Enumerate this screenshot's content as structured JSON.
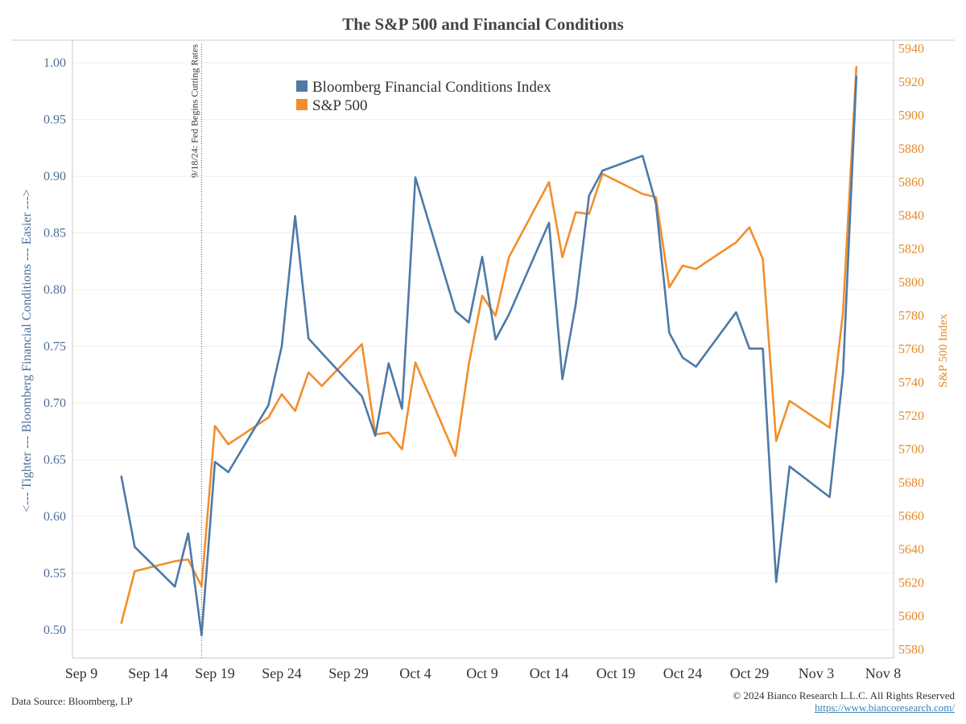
{
  "chart_data": {
    "type": "line",
    "title": "The S&P 500 and Financial Conditions",
    "y_left_label": "<--- Tighter --- Bloomberg Financial Conditions --- Easier --->",
    "y_right_label": "S&P 500 Index",
    "y_left_lim": [
      0.475,
      1.02
    ],
    "y_right_lim": [
      5575,
      5945
    ],
    "y_left_ticks": [
      "0.50",
      "0.55",
      "0.60",
      "0.65",
      "0.70",
      "0.75",
      "0.80",
      "0.85",
      "0.90",
      "0.95",
      "1.00"
    ],
    "y_right_ticks": [
      "5580",
      "5600",
      "5620",
      "5640",
      "5660",
      "5680",
      "5700",
      "5720",
      "5740",
      "5760",
      "5780",
      "5800",
      "5820",
      "5840",
      "5860",
      "5880",
      "5900",
      "5920",
      "5940"
    ],
    "x_tick_labels": [
      "Sep 9",
      "Sep 14",
      "Sep 19",
      "Sep 24",
      "Sep 29",
      "Oct 4",
      "Oct 9",
      "Oct 14",
      "Oct 19",
      "Oct 24",
      "Oct 29",
      "Nov 3",
      "Nov 8"
    ],
    "grid": true,
    "legend_position": "top-center",
    "annotation": {
      "date": "2024-09-18",
      "text": "9/18/24: Fed Begins Cutting Rates"
    },
    "series": [
      {
        "name": "Bloomberg Financial Conditions Index",
        "axis": "left",
        "color": "#4e79a7",
        "dates": [
          "2024-09-12",
          "2024-09-13",
          "2024-09-16",
          "2024-09-17",
          "2024-09-18",
          "2024-09-19",
          "2024-09-20",
          "2024-09-23",
          "2024-09-24",
          "2024-09-25",
          "2024-09-26",
          "2024-09-27",
          "2024-09-30",
          "2024-10-01",
          "2024-10-02",
          "2024-10-03",
          "2024-10-04",
          "2024-10-07",
          "2024-10-08",
          "2024-10-09",
          "2024-10-10",
          "2024-10-11",
          "2024-10-14",
          "2024-10-15",
          "2024-10-16",
          "2024-10-17",
          "2024-10-18",
          "2024-10-21",
          "2024-10-22",
          "2024-10-23",
          "2024-10-24",
          "2024-10-25",
          "2024-10-28",
          "2024-10-29",
          "2024-10-30",
          "2024-10-31",
          "2024-11-01",
          "2024-11-04",
          "2024-11-05",
          "2024-11-06"
        ],
        "values": [
          0.635,
          0.573,
          0.538,
          0.585,
          0.495,
          0.648,
          0.639,
          0.698,
          0.75,
          0.865,
          0.757,
          0.744,
          0.706,
          0.671,
          0.735,
          0.695,
          0.899,
          0.781,
          0.771,
          0.829,
          0.756,
          0.778,
          0.859,
          0.721,
          0.787,
          0.883,
          0.905,
          0.918,
          0.876,
          0.762,
          0.74,
          0.732,
          0.78,
          0.748,
          0.748,
          0.542,
          0.644,
          0.617,
          0.726,
          0.988
        ]
      },
      {
        "name": "S&P 500",
        "axis": "right",
        "color": "#f28e2b",
        "dates": [
          "2024-09-12",
          "2024-09-13",
          "2024-09-16",
          "2024-09-17",
          "2024-09-18",
          "2024-09-19",
          "2024-09-20",
          "2024-09-23",
          "2024-09-24",
          "2024-09-25",
          "2024-09-26",
          "2024-09-27",
          "2024-09-30",
          "2024-10-01",
          "2024-10-02",
          "2024-10-03",
          "2024-10-04",
          "2024-10-07",
          "2024-10-08",
          "2024-10-09",
          "2024-10-10",
          "2024-10-11",
          "2024-10-14",
          "2024-10-15",
          "2024-10-16",
          "2024-10-17",
          "2024-10-18",
          "2024-10-21",
          "2024-10-22",
          "2024-10-23",
          "2024-10-24",
          "2024-10-25",
          "2024-10-28",
          "2024-10-29",
          "2024-10-30",
          "2024-10-31",
          "2024-11-01",
          "2024-11-04",
          "2024-11-05",
          "2024-11-06"
        ],
        "values": [
          5596,
          5627,
          5633,
          5634,
          5618,
          5714,
          5703,
          5719,
          5733,
          5723,
          5746,
          5738,
          5763,
          5709,
          5710,
          5700,
          5752,
          5696,
          5751,
          5792,
          5780,
          5815,
          5860,
          5815,
          5842,
          5841,
          5865,
          5853,
          5851,
          5797,
          5810,
          5808,
          5824,
          5833,
          5814,
          5705,
          5729,
          5713,
          5782,
          5929
        ]
      }
    ]
  },
  "footer": {
    "source": "Data Source: Bloomberg, LP",
    "copyright": "© 2024 Bianco Research L.L.C. All Rights Reserved",
    "url": "https://www.biancoresearch.com/"
  }
}
